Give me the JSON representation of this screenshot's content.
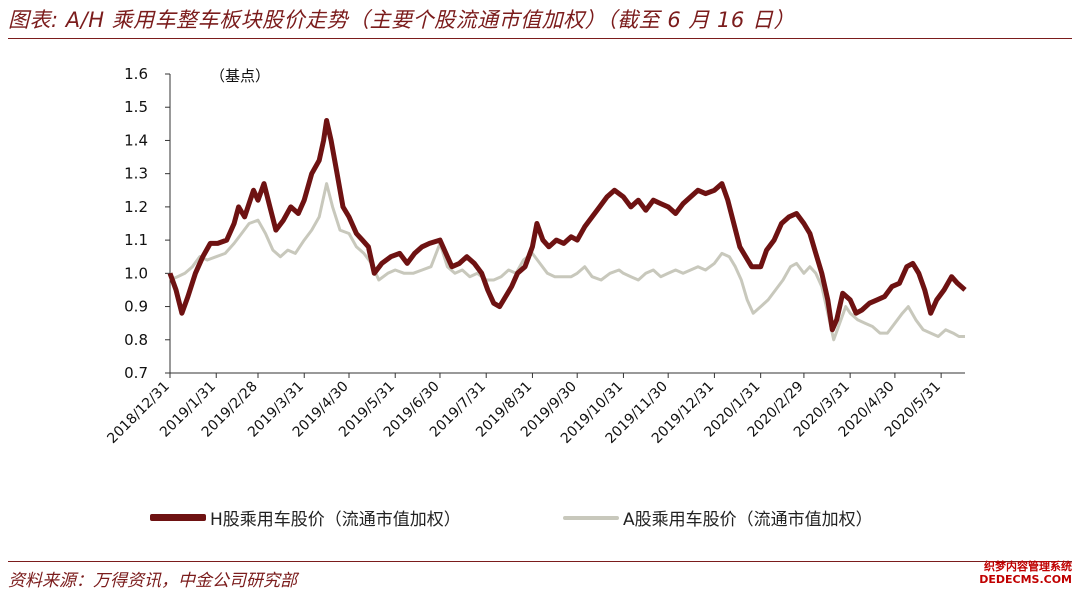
{
  "header": {
    "title": "图表: A/H 乘用车整车板块股价走势（主要个股流通市值加权）（截至 6 月 16 日）"
  },
  "footer": {
    "source": "资料来源：万得资讯，中金公司研究部",
    "watermark_line1": "织梦内容管理系统",
    "watermark_line2": "DEDECMS.COM"
  },
  "colors": {
    "h_series": "#6e1212",
    "a_series": "#c8c8bc",
    "accent": "#7b1c1c"
  },
  "chart_data": {
    "type": "line",
    "unit_label": "（基点）",
    "ylim": [
      0.7,
      1.6
    ],
    "yticks": [
      "0.7",
      "0.8",
      "0.9",
      "1.0",
      "1.1",
      "1.2",
      "1.3",
      "1.4",
      "1.5",
      "1.6"
    ],
    "x_range": [
      "2018-12-31",
      "2020-06-16"
    ],
    "xticks": [
      "2018/12/31",
      "2019/1/31",
      "2019/2/28",
      "2019/3/31",
      "2019/4/30",
      "2019/5/31",
      "2019/6/30",
      "2019/7/31",
      "2019/8/31",
      "2019/9/30",
      "2019/10/31",
      "2019/11/30",
      "2019/12/31",
      "2020/1/31",
      "2020/2/29",
      "2020/3/31",
      "2020/4/30",
      "2020/5/31"
    ],
    "grid": false,
    "legend_position": "bottom",
    "series": [
      {
        "name": "H股乘用车股价（流通市值加权）",
        "points": [
          [
            "2018-12-31",
            1.0
          ],
          [
            "2019-01-04",
            0.95
          ],
          [
            "2019-01-08",
            0.88
          ],
          [
            "2019-01-12",
            0.93
          ],
          [
            "2019-01-17",
            1.0
          ],
          [
            "2019-01-22",
            1.05
          ],
          [
            "2019-01-27",
            1.09
          ],
          [
            "2019-02-01",
            1.09
          ],
          [
            "2019-02-07",
            1.1
          ],
          [
            "2019-02-12",
            1.15
          ],
          [
            "2019-02-15",
            1.2
          ],
          [
            "2019-02-19",
            1.17
          ],
          [
            "2019-02-25",
            1.25
          ],
          [
            "2019-02-28",
            1.22
          ],
          [
            "2019-03-04",
            1.27
          ],
          [
            "2019-03-08",
            1.2
          ],
          [
            "2019-03-12",
            1.13
          ],
          [
            "2019-03-17",
            1.16
          ],
          [
            "2019-03-22",
            1.2
          ],
          [
            "2019-03-27",
            1.18
          ],
          [
            "2019-03-31",
            1.22
          ],
          [
            "2019-04-05",
            1.3
          ],
          [
            "2019-04-10",
            1.34
          ],
          [
            "2019-04-13",
            1.4
          ],
          [
            "2019-04-15",
            1.46
          ],
          [
            "2019-04-18",
            1.4
          ],
          [
            "2019-04-22",
            1.3
          ],
          [
            "2019-04-26",
            1.2
          ],
          [
            "2019-04-30",
            1.17
          ],
          [
            "2019-05-05",
            1.12
          ],
          [
            "2019-05-09",
            1.1
          ],
          [
            "2019-05-13",
            1.08
          ],
          [
            "2019-05-17",
            1.0
          ],
          [
            "2019-05-22",
            1.03
          ],
          [
            "2019-05-28",
            1.05
          ],
          [
            "2019-06-03",
            1.06
          ],
          [
            "2019-06-08",
            1.03
          ],
          [
            "2019-06-13",
            1.06
          ],
          [
            "2019-06-18",
            1.08
          ],
          [
            "2019-06-23",
            1.09
          ],
          [
            "2019-06-30",
            1.1
          ],
          [
            "2019-07-04",
            1.06
          ],
          [
            "2019-07-08",
            1.02
          ],
          [
            "2019-07-13",
            1.03
          ],
          [
            "2019-07-18",
            1.05
          ],
          [
            "2019-07-23",
            1.03
          ],
          [
            "2019-07-28",
            1.0
          ],
          [
            "2019-08-01",
            0.95
          ],
          [
            "2019-08-05",
            0.91
          ],
          [
            "2019-08-09",
            0.9
          ],
          [
            "2019-08-13",
            0.93
          ],
          [
            "2019-08-17",
            0.96
          ],
          [
            "2019-08-21",
            1.0
          ],
          [
            "2019-08-26",
            1.02
          ],
          [
            "2019-08-31",
            1.08
          ],
          [
            "2019-09-03",
            1.15
          ],
          [
            "2019-09-07",
            1.1
          ],
          [
            "2019-09-11",
            1.08
          ],
          [
            "2019-09-16",
            1.1
          ],
          [
            "2019-09-21",
            1.09
          ],
          [
            "2019-09-26",
            1.11
          ],
          [
            "2019-09-30",
            1.1
          ],
          [
            "2019-10-05",
            1.14
          ],
          [
            "2019-10-10",
            1.17
          ],
          [
            "2019-10-15",
            1.2
          ],
          [
            "2019-10-20",
            1.23
          ],
          [
            "2019-10-25",
            1.25
          ],
          [
            "2019-10-31",
            1.23
          ],
          [
            "2019-11-05",
            1.2
          ],
          [
            "2019-11-10",
            1.22
          ],
          [
            "2019-11-15",
            1.19
          ],
          [
            "2019-11-20",
            1.22
          ],
          [
            "2019-11-25",
            1.21
          ],
          [
            "2019-11-30",
            1.2
          ],
          [
            "2019-12-05",
            1.18
          ],
          [
            "2019-12-10",
            1.21
          ],
          [
            "2019-12-15",
            1.23
          ],
          [
            "2019-12-20",
            1.25
          ],
          [
            "2019-12-25",
            1.24
          ],
          [
            "2019-12-31",
            1.25
          ],
          [
            "2020-01-05",
            1.27
          ],
          [
            "2020-01-09",
            1.22
          ],
          [
            "2020-01-13",
            1.15
          ],
          [
            "2020-01-17",
            1.08
          ],
          [
            "2020-01-21",
            1.05
          ],
          [
            "2020-01-25",
            1.02
          ],
          [
            "2020-01-31",
            1.02
          ],
          [
            "2020-02-04",
            1.07
          ],
          [
            "2020-02-09",
            1.1
          ],
          [
            "2020-02-14",
            1.15
          ],
          [
            "2020-02-19",
            1.17
          ],
          [
            "2020-02-24",
            1.18
          ],
          [
            "2020-02-29",
            1.15
          ],
          [
            "2020-03-04",
            1.12
          ],
          [
            "2020-03-08",
            1.06
          ],
          [
            "2020-03-12",
            1.0
          ],
          [
            "2020-03-16",
            0.92
          ],
          [
            "2020-03-19",
            0.83
          ],
          [
            "2020-03-22",
            0.86
          ],
          [
            "2020-03-26",
            0.94
          ],
          [
            "2020-03-31",
            0.92
          ],
          [
            "2020-04-04",
            0.88
          ],
          [
            "2020-04-08",
            0.89
          ],
          [
            "2020-04-13",
            0.91
          ],
          [
            "2020-04-18",
            0.92
          ],
          [
            "2020-04-23",
            0.93
          ],
          [
            "2020-04-28",
            0.96
          ],
          [
            "2020-05-03",
            0.97
          ],
          [
            "2020-05-08",
            1.02
          ],
          [
            "2020-05-12",
            1.03
          ],
          [
            "2020-05-16",
            1.0
          ],
          [
            "2020-05-20",
            0.95
          ],
          [
            "2020-05-24",
            0.88
          ],
          [
            "2020-05-28",
            0.92
          ],
          [
            "2020-06-02",
            0.95
          ],
          [
            "2020-06-07",
            0.99
          ],
          [
            "2020-06-11",
            0.97
          ],
          [
            "2020-06-16",
            0.95
          ]
        ]
      },
      {
        "name": "A股乘用车股价（流通市值加权）",
        "points": [
          [
            "2018-12-31",
            0.98
          ],
          [
            "2019-01-05",
            0.99
          ],
          [
            "2019-01-10",
            1.0
          ],
          [
            "2019-01-15",
            1.02
          ],
          [
            "2019-01-20",
            1.05
          ],
          [
            "2019-01-25",
            1.04
          ],
          [
            "2019-01-31",
            1.05
          ],
          [
            "2019-02-06",
            1.06
          ],
          [
            "2019-02-12",
            1.09
          ],
          [
            "2019-02-17",
            1.12
          ],
          [
            "2019-02-22",
            1.15
          ],
          [
            "2019-02-28",
            1.16
          ],
          [
            "2019-03-05",
            1.12
          ],
          [
            "2019-03-10",
            1.07
          ],
          [
            "2019-03-15",
            1.05
          ],
          [
            "2019-03-20",
            1.07
          ],
          [
            "2019-03-25",
            1.06
          ],
          [
            "2019-03-31",
            1.1
          ],
          [
            "2019-04-05",
            1.13
          ],
          [
            "2019-04-10",
            1.17
          ],
          [
            "2019-04-15",
            1.27
          ],
          [
            "2019-04-19",
            1.2
          ],
          [
            "2019-04-24",
            1.13
          ],
          [
            "2019-04-30",
            1.12
          ],
          [
            "2019-05-05",
            1.08
          ],
          [
            "2019-05-10",
            1.06
          ],
          [
            "2019-05-15",
            1.03
          ],
          [
            "2019-05-20",
            0.98
          ],
          [
            "2019-05-26",
            1.0
          ],
          [
            "2019-05-31",
            1.01
          ],
          [
            "2019-06-06",
            1.0
          ],
          [
            "2019-06-12",
            1.0
          ],
          [
            "2019-06-18",
            1.01
          ],
          [
            "2019-06-24",
            1.02
          ],
          [
            "2019-06-30",
            1.09
          ],
          [
            "2019-07-05",
            1.02
          ],
          [
            "2019-07-10",
            1.0
          ],
          [
            "2019-07-15",
            1.01
          ],
          [
            "2019-07-20",
            0.99
          ],
          [
            "2019-07-25",
            1.0
          ],
          [
            "2019-07-31",
            0.98
          ],
          [
            "2019-08-05",
            0.98
          ],
          [
            "2019-08-10",
            0.99
          ],
          [
            "2019-08-15",
            1.01
          ],
          [
            "2019-08-20",
            1.0
          ],
          [
            "2019-08-25",
            1.04
          ],
          [
            "2019-08-31",
            1.06
          ],
          [
            "2019-09-05",
            1.03
          ],
          [
            "2019-09-10",
            1.0
          ],
          [
            "2019-09-15",
            0.99
          ],
          [
            "2019-09-20",
            0.99
          ],
          [
            "2019-09-26",
            0.99
          ],
          [
            "2019-09-30",
            1.0
          ],
          [
            "2019-10-05",
            1.02
          ],
          [
            "2019-10-10",
            0.99
          ],
          [
            "2019-10-16",
            0.98
          ],
          [
            "2019-10-22",
            1.0
          ],
          [
            "2019-10-28",
            1.01
          ],
          [
            "2019-10-31",
            1.0
          ],
          [
            "2019-11-05",
            0.99
          ],
          [
            "2019-11-10",
            0.98
          ],
          [
            "2019-11-15",
            1.0
          ],
          [
            "2019-11-20",
            1.01
          ],
          [
            "2019-11-25",
            0.99
          ],
          [
            "2019-11-30",
            1.0
          ],
          [
            "2019-12-05",
            1.01
          ],
          [
            "2019-12-10",
            1.0
          ],
          [
            "2019-12-15",
            1.01
          ],
          [
            "2019-12-20",
            1.02
          ],
          [
            "2019-12-25",
            1.01
          ],
          [
            "2019-12-31",
            1.03
          ],
          [
            "2020-01-05",
            1.06
          ],
          [
            "2020-01-10",
            1.05
          ],
          [
            "2020-01-14",
            1.02
          ],
          [
            "2020-01-18",
            0.98
          ],
          [
            "2020-01-22",
            0.92
          ],
          [
            "2020-01-26",
            0.88
          ],
          [
            "2020-01-31",
            0.9
          ],
          [
            "2020-02-05",
            0.92
          ],
          [
            "2020-02-10",
            0.95
          ],
          [
            "2020-02-15",
            0.98
          ],
          [
            "2020-02-20",
            1.02
          ],
          [
            "2020-02-24",
            1.03
          ],
          [
            "2020-02-29",
            1.0
          ],
          [
            "2020-03-04",
            1.02
          ],
          [
            "2020-03-08",
            1.0
          ],
          [
            "2020-03-12",
            0.96
          ],
          [
            "2020-03-16",
            0.88
          ],
          [
            "2020-03-20",
            0.8
          ],
          [
            "2020-03-24",
            0.85
          ],
          [
            "2020-03-28",
            0.9
          ],
          [
            "2020-03-31",
            0.88
          ],
          [
            "2020-04-05",
            0.86
          ],
          [
            "2020-04-10",
            0.85
          ],
          [
            "2020-04-15",
            0.84
          ],
          [
            "2020-04-20",
            0.82
          ],
          [
            "2020-04-25",
            0.82
          ],
          [
            "2020-04-30",
            0.85
          ],
          [
            "2020-05-05",
            0.88
          ],
          [
            "2020-05-09",
            0.9
          ],
          [
            "2020-05-14",
            0.86
          ],
          [
            "2020-05-19",
            0.83
          ],
          [
            "2020-05-24",
            0.82
          ],
          [
            "2020-05-29",
            0.81
          ],
          [
            "2020-06-03",
            0.83
          ],
          [
            "2020-06-08",
            0.82
          ],
          [
            "2020-06-12",
            0.81
          ],
          [
            "2020-06-16",
            0.81
          ]
        ]
      }
    ]
  }
}
